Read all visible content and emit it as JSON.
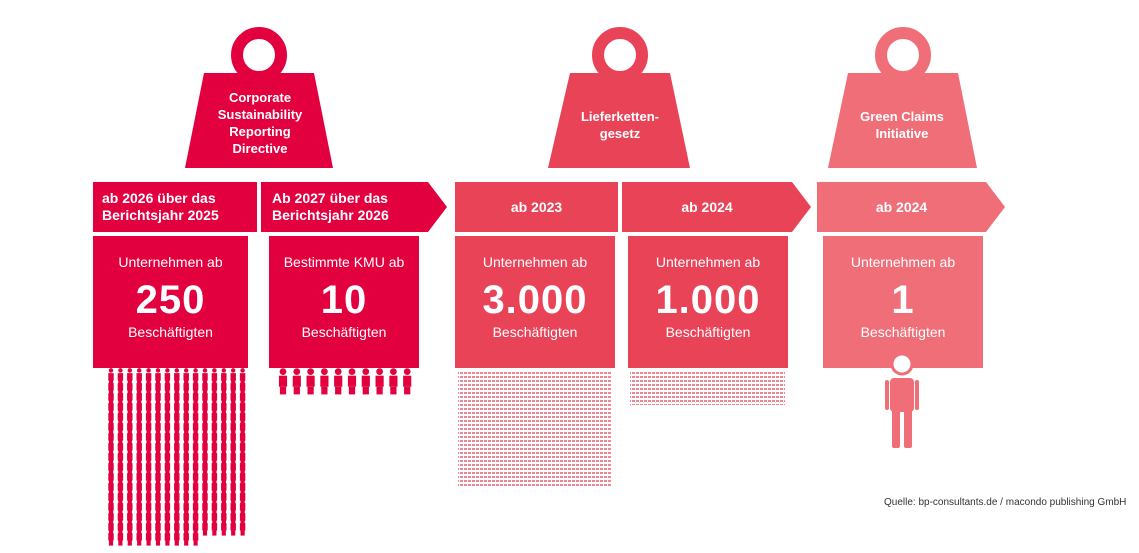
{
  "colors": {
    "csrd": "#e2003f",
    "lksg": "#e94358",
    "green": "#ef6e78"
  },
  "weights": [
    {
      "id": "csrd",
      "title": "Corporate Sustainability Reporting Directive"
    },
    {
      "id": "lksg",
      "title": "Lieferketten-gesetz"
    },
    {
      "id": "green",
      "title": "Green Claims Initiative"
    }
  ],
  "arrows": {
    "csrd_1": "ab 2026 über das Berichtsjahr 2025",
    "csrd_2": "Ab 2027 über das Berichtsjahr 2026",
    "lksg_1": "ab 2023",
    "lksg_2": "ab 2024",
    "green_1": "ab 2024"
  },
  "boxes": [
    {
      "top": "Unternehmen ab",
      "num": "250",
      "bot": "Beschäftigten"
    },
    {
      "top": "Bestimmte KMU ab",
      "num": "10",
      "bot": "Beschäftigten"
    },
    {
      "top": "Unternehmen ab",
      "num": "3.000",
      "bot": "Beschäftigten"
    },
    {
      "top": "Unternehmen ab",
      "num": "1.000",
      "bot": "Beschäftigten"
    },
    {
      "top": "Unternehmen ab",
      "num": "1",
      "bot": "Beschäftigten"
    }
  ],
  "source": "Quelle: bp-consultants.de / macondo publishing GmbH"
}
